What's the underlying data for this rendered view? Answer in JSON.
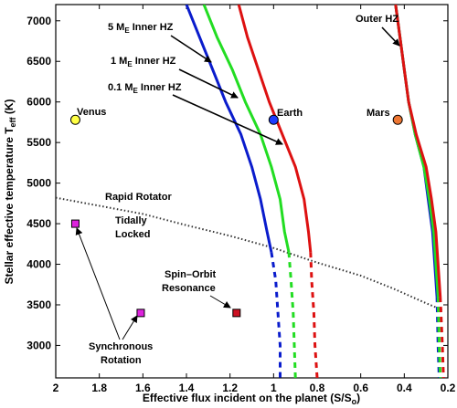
{
  "chart_data": {
    "type": "line",
    "xlabel": "Effective flux incident on the planet (S/S",
    "xlabel_sub": "o",
    "xlabel_end": ")",
    "ylabel": "Stellar effective temperature T",
    "ylabel_sub": "eff",
    "ylabel_end": " (K)",
    "x_reversed": true,
    "xlim": [
      2,
      0.2
    ],
    "ylim": [
      2600,
      7200
    ],
    "xticks": [
      2,
      1.8,
      1.6,
      1.4,
      1.2,
      1,
      0.8,
      0.6,
      0.4,
      0.2
    ],
    "xtick_labels": [
      "2",
      "1.8",
      "1.6",
      "1.4",
      "1.2",
      "1",
      "0.8",
      "0.6",
      "0.4",
      "0.2"
    ],
    "yticks": [
      3000,
      3500,
      4000,
      4500,
      5000,
      5500,
      6000,
      6500,
      7000
    ],
    "ytick_labels": [
      "3000",
      "3500",
      "4000",
      "4500",
      "5000",
      "5500",
      "6000",
      "6500",
      "7000"
    ],
    "series": [
      {
        "name": "5 M",
        "sub": "E",
        "tail": " Inner HZ",
        "color": "#0a1ccc",
        "solid": [
          [
            1.4,
            7200
          ],
          [
            1.34,
            6800
          ],
          [
            1.28,
            6400
          ],
          [
            1.22,
            6000
          ],
          [
            1.15,
            5600
          ],
          [
            1.1,
            5200
          ],
          [
            1.06,
            4800
          ],
          [
            1.03,
            4400
          ],
          [
            1.01,
            4150
          ]
        ],
        "dashed": [
          [
            1.01,
            4150
          ],
          [
            0.99,
            3800
          ],
          [
            0.98,
            3400
          ],
          [
            0.97,
            3000
          ],
          [
            0.97,
            2600
          ]
        ]
      },
      {
        "name": "1 M",
        "sub": "E",
        "tail": " Inner HZ",
        "color": "#22dd22",
        "solid": [
          [
            1.32,
            7200
          ],
          [
            1.26,
            6800
          ],
          [
            1.19,
            6400
          ],
          [
            1.13,
            6000
          ],
          [
            1.06,
            5600
          ],
          [
            1.01,
            5200
          ],
          [
            0.97,
            4800
          ],
          [
            0.95,
            4400
          ],
          [
            0.93,
            4150
          ]
        ],
        "dashed": [
          [
            0.93,
            4150
          ],
          [
            0.92,
            3800
          ],
          [
            0.91,
            3400
          ],
          [
            0.905,
            3000
          ],
          [
            0.9,
            2600
          ]
        ]
      },
      {
        "name": "0.1 M",
        "sub": "E",
        "tail": " Inner HZ",
        "color": "#dd1111",
        "solid": [
          [
            1.16,
            7200
          ],
          [
            1.12,
            6800
          ],
          [
            1.07,
            6400
          ],
          [
            1.02,
            6000
          ],
          [
            0.96,
            5600
          ],
          [
            0.9,
            5200
          ],
          [
            0.86,
            4800
          ],
          [
            0.84,
            4400
          ],
          [
            0.83,
            4150
          ]
        ],
        "dashed": [
          [
            0.83,
            4150
          ],
          [
            0.825,
            3800
          ],
          [
            0.815,
            3400
          ],
          [
            0.81,
            3000
          ],
          [
            0.8,
            2600
          ]
        ]
      },
      {
        "name": "Outer HZ",
        "sub": "",
        "tail": "",
        "color": "#0a1ccc",
        "solid": [
          [
            0.44,
            7200
          ],
          [
            0.42,
            6800
          ],
          [
            0.4,
            6400
          ],
          [
            0.38,
            6000
          ],
          [
            0.35,
            5600
          ],
          [
            0.31,
            5200
          ],
          [
            0.29,
            4800
          ],
          [
            0.27,
            4400
          ],
          [
            0.25,
            3600
          ]
        ],
        "dashed": [
          [
            0.25,
            3600
          ],
          [
            0.245,
            3000
          ],
          [
            0.24,
            2600
          ]
        ]
      },
      {
        "name": "",
        "sub": "",
        "tail": "",
        "color": "#22dd22",
        "solid": [
          [
            0.44,
            7200
          ],
          [
            0.42,
            6800
          ],
          [
            0.4,
            6400
          ],
          [
            0.38,
            6000
          ],
          [
            0.35,
            5600
          ],
          [
            0.31,
            5200
          ],
          [
            0.285,
            4800
          ],
          [
            0.265,
            4400
          ],
          [
            0.245,
            3600
          ]
        ],
        "dashed": [
          [
            0.245,
            3600
          ],
          [
            0.24,
            3000
          ],
          [
            0.235,
            2600
          ]
        ]
      },
      {
        "name": "",
        "sub": "",
        "tail": "",
        "color": "#dd1111",
        "solid": [
          [
            0.44,
            7200
          ],
          [
            0.42,
            6800
          ],
          [
            0.4,
            6400
          ],
          [
            0.38,
            6000
          ],
          [
            0.345,
            5600
          ],
          [
            0.3,
            5200
          ],
          [
            0.275,
            4800
          ],
          [
            0.255,
            4400
          ],
          [
            0.235,
            3600
          ]
        ],
        "dashed": [
          [
            0.235,
            3600
          ],
          [
            0.225,
            3000
          ],
          [
            0.22,
            2600
          ]
        ]
      }
    ],
    "planets": [
      {
        "name": "Venus",
        "x": 1.91,
        "y": 5780,
        "color": "#ffff44"
      },
      {
        "name": "Earth",
        "x": 1.0,
        "y": 5780,
        "color": "#1e3cff"
      },
      {
        "name": "Mars",
        "x": 0.43,
        "y": 5780,
        "color": "#ee7733"
      }
    ],
    "squares": [
      {
        "x": 1.91,
        "y": 4500,
        "color": "#dd22dd"
      },
      {
        "x": 1.61,
        "y": 3400,
        "color": "#dd22dd"
      },
      {
        "x": 1.17,
        "y": 3400,
        "color": "#cc1122"
      }
    ],
    "rotator_line": [
      [
        2.0,
        4820
      ],
      [
        1.8,
        4720
      ],
      [
        1.6,
        4620
      ],
      [
        1.4,
        4480
      ],
      [
        1.2,
        4350
      ],
      [
        1.0,
        4200
      ],
      [
        0.8,
        4020
      ],
      [
        0.6,
        3860
      ],
      [
        0.45,
        3700
      ],
      [
        0.3,
        3520
      ],
      [
        0.22,
        3430
      ]
    ],
    "annotations": {
      "rapid_rotator": "Rapid Rotator",
      "tidally": "Tidally",
      "locked": "Locked",
      "spin_orbit_1": "Spin–Orbit",
      "spin_orbit_2": "Resonance",
      "synchronous": "Synchronous",
      "rotation": "Rotation"
    }
  }
}
